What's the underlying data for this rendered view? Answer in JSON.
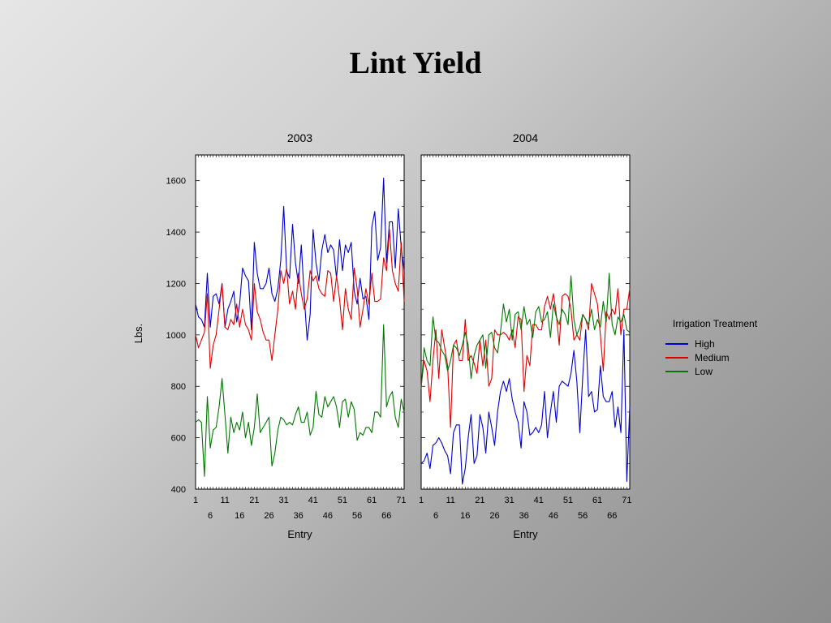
{
  "slide": {
    "title": "Lint Yield"
  },
  "colors": {
    "High": "#0000cc",
    "Medium": "#dd0000",
    "Low": "#007700"
  },
  "chart_data": [
    {
      "type": "line",
      "title": "2003",
      "xlabel": "Entry",
      "ylabel": "Lbs.",
      "ylim": [
        400,
        1700
      ],
      "xlim": [
        1,
        72
      ],
      "yticks": [
        400,
        600,
        800,
        1000,
        1200,
        1400,
        1600
      ],
      "xticks_top": [
        1,
        11,
        21,
        31,
        41,
        51,
        61,
        71
      ],
      "xticks_bottom": [
        6,
        16,
        26,
        36,
        46,
        56,
        66
      ],
      "legend": {
        "title": "Irrigation Treatment",
        "placement": "right"
      },
      "series": [
        {
          "name": "High",
          "values": [
            1120,
            1070,
            1060,
            1030,
            1240,
            1030,
            1150,
            1160,
            1120,
            1200,
            1030,
            1100,
            1130,
            1170,
            1050,
            1120,
            1260,
            1230,
            1210,
            1020,
            1360,
            1240,
            1180,
            1180,
            1200,
            1260,
            1160,
            1130,
            1180,
            1290,
            1500,
            1250,
            1220,
            1430,
            1280,
            1200,
            1350,
            1150,
            980,
            1080,
            1410,
            1280,
            1210,
            1330,
            1390,
            1320,
            1350,
            1330,
            1220,
            1370,
            1250,
            1350,
            1320,
            1360,
            1170,
            1120,
            1220,
            1140,
            1150,
            1060,
            1420,
            1480,
            1290,
            1340,
            1610,
            1280,
            1440,
            1440,
            1260,
            1490,
            1340,
            1250
          ]
        },
        {
          "name": "Medium",
          "values": [
            1000,
            950,
            980,
            1010,
            1160,
            870,
            960,
            1000,
            1100,
            1200,
            1030,
            1020,
            1060,
            1040,
            1120,
            1030,
            1100,
            1040,
            1020,
            980,
            1200,
            1090,
            1060,
            1010,
            980,
            980,
            900,
            1000,
            1100,
            1250,
            1200,
            1260,
            1120,
            1170,
            1100,
            1240,
            1160,
            1100,
            1140,
            1250,
            1210,
            1230,
            1180,
            1160,
            1150,
            1250,
            1240,
            1130,
            1230,
            1140,
            1020,
            1180,
            1100,
            1060,
            1260,
            1180,
            1030,
            1100,
            1180,
            1120,
            1240,
            1130,
            1130,
            1140,
            1300,
            1250,
            1410,
            1250,
            1200,
            1170,
            1360,
            1130
          ]
        },
        {
          "name": "Low",
          "values": [
            660,
            670,
            660,
            450,
            760,
            560,
            630,
            640,
            720,
            830,
            690,
            540,
            680,
            620,
            660,
            630,
            700,
            600,
            660,
            570,
            640,
            770,
            620,
            640,
            660,
            680,
            490,
            540,
            630,
            680,
            670,
            650,
            660,
            650,
            690,
            720,
            660,
            660,
            700,
            610,
            640,
            780,
            690,
            680,
            760,
            720,
            740,
            760,
            720,
            640,
            740,
            750,
            680,
            740,
            710,
            590,
            620,
            610,
            640,
            640,
            620,
            700,
            700,
            680,
            1040,
            720,
            760,
            780,
            680,
            640,
            750,
            700
          ]
        }
      ]
    },
    {
      "type": "line",
      "title": "2004",
      "xlabel": "Entry",
      "ylim": [
        400,
        1700
      ],
      "xlim": [
        1,
        72
      ],
      "yticks": [
        400,
        600,
        800,
        1000,
        1200,
        1400,
        1600
      ],
      "xticks_top": [
        1,
        11,
        21,
        31,
        41,
        51,
        61,
        71
      ],
      "xticks_bottom": [
        6,
        16,
        26,
        36,
        46,
        56,
        66
      ],
      "series": [
        {
          "name": "High",
          "values": [
            500,
            510,
            540,
            480,
            570,
            580,
            600,
            580,
            550,
            530,
            460,
            620,
            650,
            650,
            420,
            480,
            600,
            690,
            500,
            530,
            690,
            640,
            540,
            700,
            640,
            570,
            700,
            780,
            820,
            780,
            830,
            750,
            700,
            660,
            560,
            740,
            700,
            610,
            620,
            640,
            620,
            650,
            780,
            600,
            700,
            780,
            660,
            800,
            820,
            810,
            800,
            850,
            940,
            820,
            620,
            840,
            1020,
            760,
            780,
            700,
            710,
            880,
            760,
            740,
            740,
            780,
            640,
            720,
            620,
            1020,
            430,
            720
          ]
        },
        {
          "name": "Medium",
          "values": [
            800,
            900,
            860,
            740,
            900,
            1020,
            830,
            1020,
            950,
            880,
            640,
            960,
            980,
            900,
            900,
            1060,
            900,
            920,
            890,
            850,
            980,
            880,
            980,
            800,
            830,
            1020,
            1000,
            1000,
            1010,
            1000,
            980,
            1020,
            950,
            1070,
            1060,
            780,
            920,
            880,
            1040,
            1040,
            1020,
            1020,
            1110,
            1150,
            1100,
            1160,
            1080,
            960,
            1150,
            1160,
            1150,
            1100,
            980,
            1000,
            980,
            1080,
            1060,
            1020,
            1200,
            1160,
            1120,
            1000,
            860,
            1090,
            1060,
            1100,
            1080,
            1180,
            1000,
            1100,
            1100,
            1180
          ]
        },
        {
          "name": "Low",
          "values": [
            790,
            950,
            900,
            880,
            1070,
            980,
            970,
            940,
            920,
            860,
            900,
            960,
            950,
            920,
            960,
            1010,
            960,
            830,
            920,
            960,
            980,
            1000,
            870,
            1000,
            1010,
            950,
            930,
            1010,
            1120,
            1050,
            1100,
            980,
            1080,
            1090,
            1020,
            1110,
            1040,
            1060,
            990,
            1090,
            1110,
            1050,
            1060,
            1090,
            990,
            1120,
            1070,
            1040,
            1100,
            1080,
            1040,
            1230,
            1060,
            1000,
            1030,
            1080,
            1060,
            1040,
            1100,
            1020,
            1060,
            1030,
            1130,
            1050,
            1240,
            1040,
            1000,
            1070,
            1050,
            1080,
            1020,
            1010
          ]
        }
      ]
    }
  ]
}
